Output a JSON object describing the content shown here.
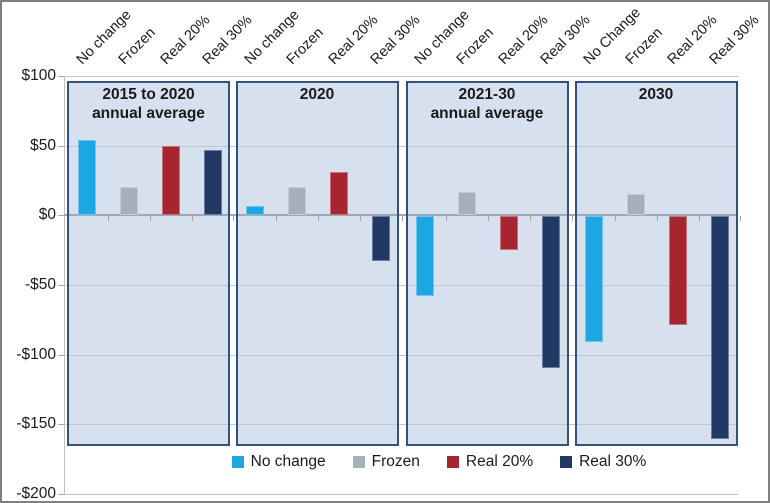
{
  "chart_data": {
    "type": "bar",
    "title": "",
    "xlabel": "",
    "ylabel": "",
    "ylim": [
      -200,
      100
    ],
    "grid": true,
    "y_axis": {
      "tick_labels": [
        "$100",
        "$50",
        "$0",
        "-$50",
        "-$100",
        "-$150",
        "-$200"
      ],
      "tick_values": [
        100,
        50,
        0,
        -50,
        -100,
        -150,
        -200
      ]
    },
    "series": [
      {
        "name": "No change",
        "color": "#1CA6E2"
      },
      {
        "name": "Frozen",
        "color": "#A7AFBA"
      },
      {
        "name": "Real 20%",
        "color": "#A52531"
      },
      {
        "name": "Real 30%",
        "color": "#1F3864"
      }
    ],
    "panels": [
      {
        "title_lines": [
          "2015 to 2020",
          "annual average"
        ],
        "bar_labels": [
          "No change",
          "Frozen",
          "Real 20%",
          "Real 30%"
        ],
        "values": [
          54,
          20,
          50,
          47
        ]
      },
      {
        "title_lines": [
          "2020"
        ],
        "bar_labels": [
          "No change",
          "Frozen",
          "Real 20%",
          "Real 30%"
        ],
        "values": [
          7,
          20,
          31,
          -32
        ]
      },
      {
        "title_lines": [
          "2021-30",
          "annual average"
        ],
        "bar_labels": [
          "No change",
          "Frozen",
          "Real 20%",
          "Real 30%"
        ],
        "values": [
          -57,
          17,
          -24,
          -109
        ]
      },
      {
        "title_lines": [
          "2030"
        ],
        "bar_labels": [
          "No Change",
          "Frozen",
          "Real 20%",
          "Real 30%"
        ],
        "values": [
          -90,
          15,
          -78,
          -160
        ]
      }
    ],
    "legend": {
      "position": "bottom",
      "entries": [
        "No change",
        "Frozen",
        "Real 20%",
        "Real 30%"
      ]
    }
  },
  "colors": {
    "panel_fill": "#D6E0EF",
    "panel_border": "#33517E",
    "gridline": "#C2C7CE",
    "zero_axis": "#9FA9B5",
    "outer_axis": "#BFBFBF",
    "tick": "#A6A6A6",
    "text": "#1A1A1A",
    "chart_border": "#7F7F7F",
    "background": "#FFFFFF"
  }
}
